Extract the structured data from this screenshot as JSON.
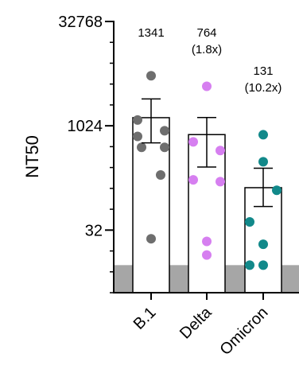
{
  "chart_data": {
    "type": "scatter",
    "title": "",
    "xlabel": "",
    "ylabel": "NT50",
    "y_scale": "log2",
    "ylim": [
      4,
      32768
    ],
    "y_ticks": [
      {
        "value": 32768,
        "label": "32768"
      },
      {
        "value": 1024,
        "label": "1024"
      },
      {
        "value": 32,
        "label": "32"
      }
    ],
    "categories": [
      "B.1",
      "Delta",
      "Omicron"
    ],
    "limit_of_detection": 10,
    "series": [
      {
        "category": "B.1",
        "color": "#6e6e6e",
        "mean": 1341,
        "error_upper": 2500,
        "error_lower": 580,
        "values": [
          5400,
          1240,
          870,
          720,
          500,
          500,
          200,
          24
        ],
        "annotation": [
          "1341"
        ]
      },
      {
        "category": "Delta",
        "color": "#d67ff0",
        "mean": 764,
        "error_upper": 1350,
        "error_lower": 260,
        "values": [
          3800,
          600,
          450,
          170,
          160,
          22,
          14
        ],
        "annotation": [
          "764",
          "(1.8x)"
        ]
      },
      {
        "category": "Omicron",
        "color": "#12898a",
        "mean": 131,
        "error_upper": 250,
        "error_lower": 70,
        "values": [
          760,
          310,
          120,
          42,
          20,
          10,
          10
        ],
        "annotation": [
          "131",
          "(10.2x)"
        ]
      }
    ]
  }
}
